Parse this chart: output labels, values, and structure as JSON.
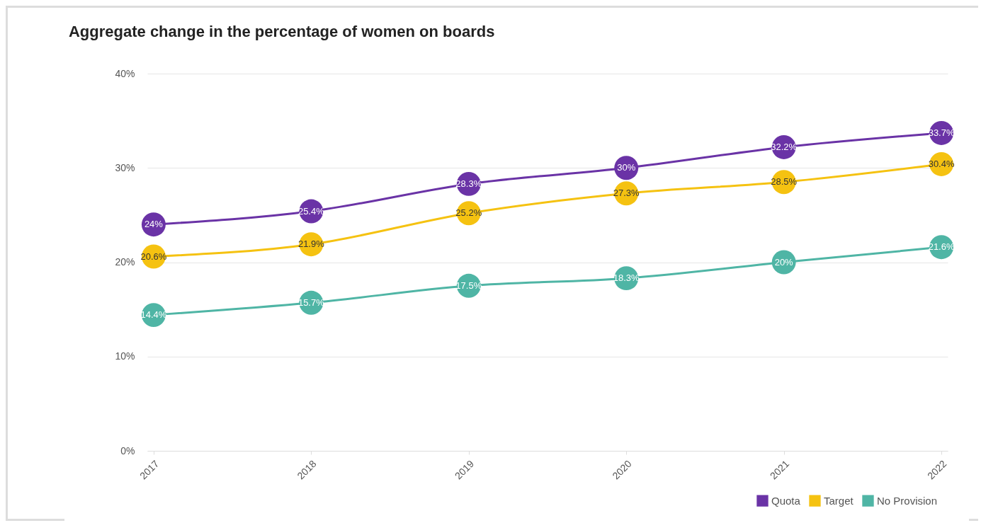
{
  "chart_data": {
    "type": "line",
    "title": "Aggregate change in the percentage of women on boards",
    "categories": [
      "2017",
      "2018",
      "2019",
      "2020",
      "2021",
      "2022"
    ],
    "series": [
      {
        "name": "Quota",
        "color": "#6a33a6",
        "values": [
          24,
          25.4,
          28.3,
          30,
          32.2,
          33.7
        ],
        "value_labels": [
          "24%",
          "25.4%",
          "28.3%",
          "30%",
          "32.2%",
          "33.7%"
        ]
      },
      {
        "name": "Target",
        "color": "#f5c211",
        "values": [
          20.6,
          21.9,
          25.2,
          27.3,
          28.5,
          30.4
        ],
        "value_labels": [
          "20.6%",
          "21.9%",
          "25.2%",
          "27.3%",
          "28.5%",
          "30.4%"
        ]
      },
      {
        "name": "No Provision",
        "color": "#4fb5a5",
        "values": [
          14.4,
          15.7,
          17.5,
          18.3,
          20,
          21.6
        ],
        "value_labels": [
          "14.4%",
          "15.7%",
          "17.5%",
          "18.3%",
          "20%",
          "21.6%"
        ]
      }
    ],
    "ylim": [
      0,
      40
    ],
    "yticks": [
      {
        "value": 0,
        "label": "0%"
      },
      {
        "value": 10,
        "label": "10%"
      },
      {
        "value": 20,
        "label": "20%"
      },
      {
        "value": 30,
        "label": "30%"
      },
      {
        "value": 40,
        "label": "40%"
      }
    ],
    "grid": "y",
    "legend": "bottom right",
    "marker": "circle",
    "line_style": "solid"
  }
}
